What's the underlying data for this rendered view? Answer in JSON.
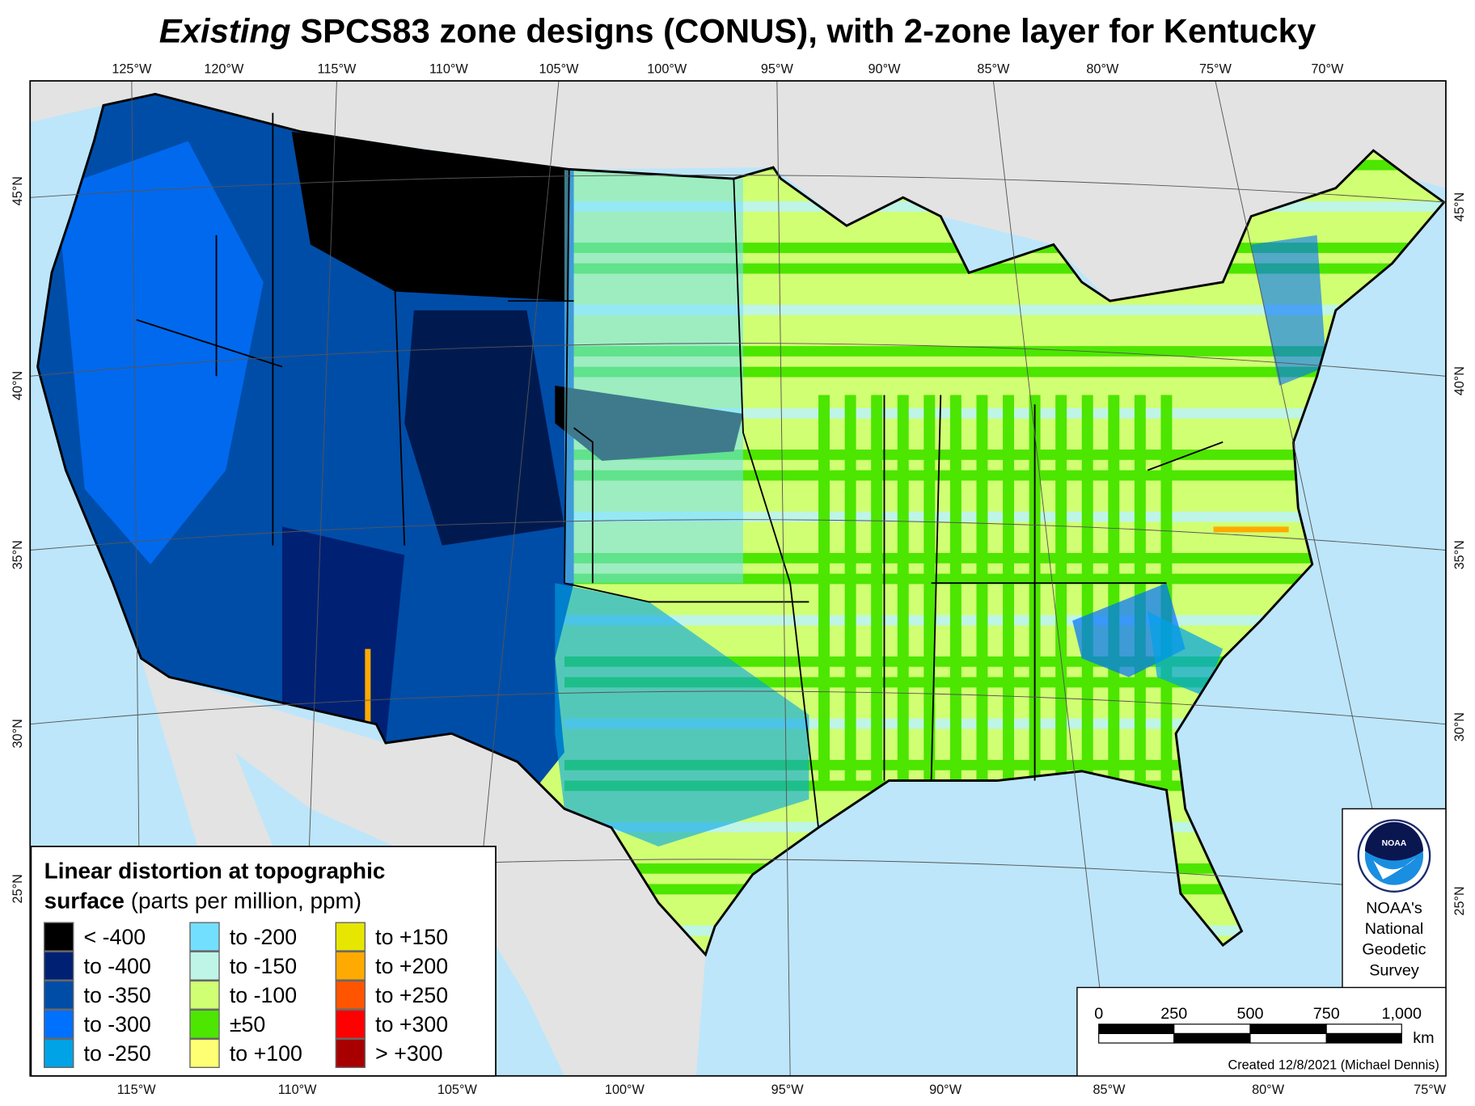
{
  "title": {
    "italic": "Existing",
    "rest": " SPCS83 zone designs (CONUS), with 2-zone layer for Kentucky"
  },
  "graticule": {
    "top": [
      "125°W",
      "120°W",
      "115°W",
      "110°W",
      "105°W",
      "100°W",
      "95°W",
      "90°W",
      "85°W",
      "80°W",
      "75°W",
      "70°W"
    ],
    "bottom": [
      "115°W",
      "110°W",
      "105°W",
      "100°W",
      "95°W",
      "90°W",
      "85°W",
      "80°W",
      "75°W"
    ],
    "left": [
      "45°N",
      "40°N",
      "35°N",
      "30°N",
      "25°N"
    ],
    "right": [
      "45°N",
      "40°N",
      "35°N",
      "30°N",
      "25°N"
    ]
  },
  "legend": {
    "title_bold_1": "Linear distortion at topographic",
    "title_bold_2": "surface",
    "title_normal": " (parts per million, ppm)",
    "items": [
      {
        "label": "< -400",
        "color": "#000000"
      },
      {
        "label": "to -400",
        "color": "#002173"
      },
      {
        "label": "to -350",
        "color": "#004da8"
      },
      {
        "label": "to -300",
        "color": "#0070ff"
      },
      {
        "label": "to -250",
        "color": "#00a3e6"
      },
      {
        "label": "to -200",
        "color": "#73dfff"
      },
      {
        "label": "to -150",
        "color": "#bef5e6"
      },
      {
        "label": "to -100",
        "color": "#d1ff73"
      },
      {
        "label": "±50",
        "color": "#4ce600"
      },
      {
        "label": "to +100",
        "color": "#ffff73"
      },
      {
        "label": "to +150",
        "color": "#e6e600"
      },
      {
        "label": "to +200",
        "color": "#ffaa00"
      },
      {
        "label": "to +250",
        "color": "#ff5500"
      },
      {
        "label": "to +300",
        "color": "#ff0000"
      },
      {
        "label": "> +300",
        "color": "#a80000"
      }
    ]
  },
  "noaa": {
    "logo_text": "NOAA",
    "line1": "NOAA's",
    "line2": "National",
    "line3": "Geodetic",
    "line4": "Survey"
  },
  "scale": {
    "ticks": [
      "0",
      "250",
      "500",
      "750",
      "1,000"
    ],
    "unit": "km"
  },
  "credit": "Created 12/8/2021 (Michael Dennis)",
  "colors": {
    "ocean": "#bde6fa",
    "foreign_land": "#e3e3e3",
    "lakes": "#a8d4f0"
  }
}
